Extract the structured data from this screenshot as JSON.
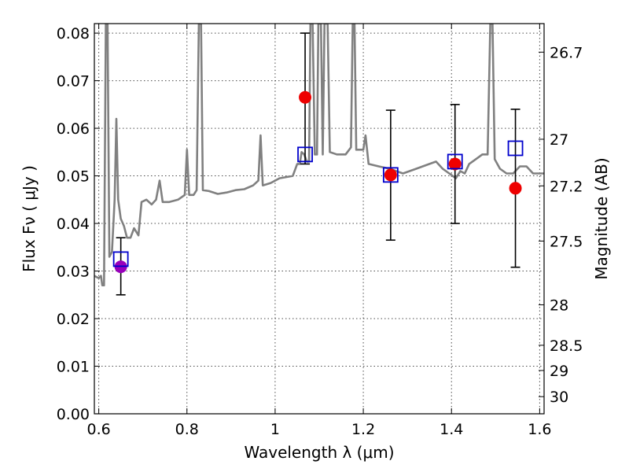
{
  "chart_data": {
    "type": "scatter",
    "title": "",
    "xlabel": "Wavelength  λ (μm)",
    "ylabel": "Flux  Fν  ( μJy )",
    "ylabel_right": "Magnitude (AB)",
    "xlim": [
      0.59,
      1.61
    ],
    "ylim": [
      0.0,
      0.082
    ],
    "grid": true,
    "x_ticks": [
      {
        "value": 0.6,
        "label": "0.6"
      },
      {
        "value": 0.8,
        "label": "0.8"
      },
      {
        "value": 1.0,
        "label": "1"
      },
      {
        "value": 1.2,
        "label": "1.2"
      },
      {
        "value": 1.4,
        "label": "1.4"
      },
      {
        "value": 1.6,
        "label": "1.6"
      }
    ],
    "y_ticks": [
      {
        "value": 0.0,
        "label": "0.00"
      },
      {
        "value": 0.01,
        "label": "0.01"
      },
      {
        "value": 0.02,
        "label": "0.02"
      },
      {
        "value": 0.03,
        "label": "0.03"
      },
      {
        "value": 0.04,
        "label": "0.04"
      },
      {
        "value": 0.05,
        "label": "0.05"
      },
      {
        "value": 0.06,
        "label": "0.06"
      },
      {
        "value": 0.07,
        "label": "0.07"
      },
      {
        "value": 0.08,
        "label": "0.08"
      }
    ],
    "right_ticks": [
      {
        "flux": 0.076,
        "label": "26.7"
      },
      {
        "flux": 0.0577,
        "label": "27"
      },
      {
        "flux": 0.0479,
        "label": "27.2"
      },
      {
        "flux": 0.0363,
        "label": "27.5"
      },
      {
        "flux": 0.0229,
        "label": "28"
      },
      {
        "flux": 0.0144,
        "label": "28.5"
      },
      {
        "flux": 0.0091,
        "label": "29"
      },
      {
        "flux": 0.0036,
        "label": "30"
      }
    ],
    "model_spectrum": {
      "color": "#808080",
      "points": [
        [
          0.59,
          0.029
        ],
        [
          0.6,
          0.0285
        ],
        [
          0.605,
          0.029
        ],
        [
          0.608,
          0.027
        ],
        [
          0.612,
          0.027
        ],
        [
          0.616,
          0.082
        ],
        [
          0.62,
          0.082
        ],
        [
          0.624,
          0.033
        ],
        [
          0.63,
          0.034
        ],
        [
          0.636,
          0.045
        ],
        [
          0.64,
          0.062
        ],
        [
          0.644,
          0.045
        ],
        [
          0.65,
          0.041
        ],
        [
          0.657,
          0.0395
        ],
        [
          0.664,
          0.037
        ],
        [
          0.672,
          0.037
        ],
        [
          0.68,
          0.039
        ],
        [
          0.69,
          0.0375
        ],
        [
          0.697,
          0.0445
        ],
        [
          0.708,
          0.045
        ],
        [
          0.72,
          0.044
        ],
        [
          0.73,
          0.045
        ],
        [
          0.738,
          0.049
        ],
        [
          0.745,
          0.0445
        ],
        [
          0.76,
          0.0445
        ],
        [
          0.78,
          0.045
        ],
        [
          0.795,
          0.046
        ],
        [
          0.8,
          0.0555
        ],
        [
          0.805,
          0.046
        ],
        [
          0.815,
          0.046
        ],
        [
          0.822,
          0.047
        ],
        [
          0.827,
          0.082
        ],
        [
          0.832,
          0.082
        ],
        [
          0.836,
          0.047
        ],
        [
          0.85,
          0.0468
        ],
        [
          0.87,
          0.0462
        ],
        [
          0.89,
          0.0465
        ],
        [
          0.91,
          0.047
        ],
        [
          0.93,
          0.0472
        ],
        [
          0.95,
          0.048
        ],
        [
          0.962,
          0.049
        ],
        [
          0.967,
          0.0585
        ],
        [
          0.972,
          0.048
        ],
        [
          0.99,
          0.0485
        ],
        [
          1.01,
          0.0495
        ],
        [
          1.04,
          0.05
        ],
        [
          1.05,
          0.0525
        ],
        [
          1.056,
          0.0525
        ],
        [
          1.06,
          0.055
        ],
        [
          1.066,
          0.0545
        ],
        [
          1.072,
          0.053
        ],
        [
          1.077,
          0.053
        ],
        [
          1.08,
          0.082
        ],
        [
          1.085,
          0.082
        ],
        [
          1.09,
          0.0545
        ],
        [
          1.095,
          0.0545
        ],
        [
          1.098,
          0.082
        ],
        [
          1.104,
          0.082
        ],
        [
          1.108,
          0.0545
        ],
        [
          1.112,
          0.082
        ],
        [
          1.119,
          0.082
        ],
        [
          1.124,
          0.055
        ],
        [
          1.14,
          0.0545
        ],
        [
          1.16,
          0.0545
        ],
        [
          1.172,
          0.056
        ],
        [
          1.176,
          0.082
        ],
        [
          1.18,
          0.082
        ],
        [
          1.184,
          0.0555
        ],
        [
          1.2,
          0.0555
        ],
        [
          1.205,
          0.0585
        ],
        [
          1.212,
          0.0525
        ],
        [
          1.235,
          0.052
        ],
        [
          1.26,
          0.0515
        ],
        [
          1.29,
          0.0505
        ],
        [
          1.32,
          0.0515
        ],
        [
          1.35,
          0.0525
        ],
        [
          1.365,
          0.053
        ],
        [
          1.38,
          0.0515
        ],
        [
          1.395,
          0.0505
        ],
        [
          1.41,
          0.0495
        ],
        [
          1.42,
          0.051
        ],
        [
          1.43,
          0.0505
        ],
        [
          1.44,
          0.0525
        ],
        [
          1.455,
          0.0535
        ],
        [
          1.47,
          0.0545
        ],
        [
          1.482,
          0.0545
        ],
        [
          1.488,
          0.082
        ],
        [
          1.493,
          0.082
        ],
        [
          1.498,
          0.0535
        ],
        [
          1.51,
          0.0515
        ],
        [
          1.525,
          0.0505
        ],
        [
          1.54,
          0.0505
        ],
        [
          1.555,
          0.052
        ],
        [
          1.57,
          0.052
        ],
        [
          1.585,
          0.0505
        ],
        [
          1.61,
          0.0505
        ]
      ]
    },
    "measurements": [
      {
        "x": 0.65,
        "flux": 0.0309,
        "err_low": 0.025,
        "err_high": 0.037,
        "color": "#9900bb"
      },
      {
        "x": 1.068,
        "flux": 0.0665,
        "err_low": 0.0525,
        "err_high": 0.08,
        "color": "#ee0000"
      },
      {
        "x": 1.262,
        "flux": 0.0502,
        "err_low": 0.0365,
        "err_high": 0.0638,
        "color": "#ee0000"
      },
      {
        "x": 1.408,
        "flux": 0.0525,
        "err_low": 0.04,
        "err_high": 0.065,
        "color": "#ee0000"
      },
      {
        "x": 1.545,
        "flux": 0.0474,
        "err_low": 0.0308,
        "err_high": 0.064,
        "color": "#ee0000"
      }
    ],
    "model_photometry": {
      "color": "#0000cc",
      "points": [
        {
          "x": 0.65,
          "flux": 0.0325
        },
        {
          "x": 1.068,
          "flux": 0.0545
        },
        {
          "x": 1.262,
          "flux": 0.0502
        },
        {
          "x": 1.408,
          "flux": 0.053
        },
        {
          "x": 1.545,
          "flux": 0.0558
        }
      ]
    }
  }
}
